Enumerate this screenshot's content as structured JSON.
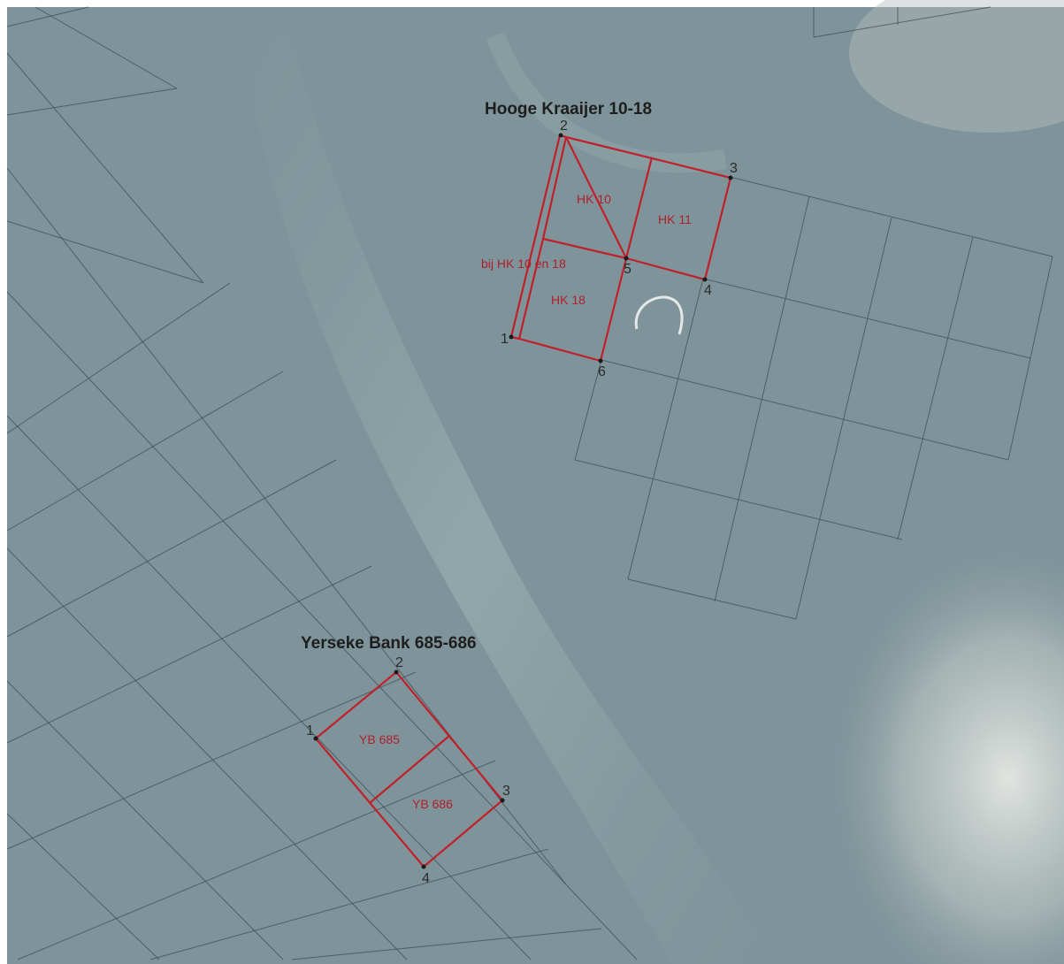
{
  "colors": {
    "background": "#7e949a",
    "plot_outline": "#c0202a",
    "grid": "#3f4d55",
    "title": "#1e1e1e"
  },
  "areas": [
    {
      "title": "Hooge Kraaijer 10-18",
      "plots": [
        "HK 10",
        "HK 11",
        "HK 18"
      ],
      "strip_label": "bij HK 10 en 18",
      "points": [
        "1",
        "2",
        "3",
        "4",
        "5",
        "6"
      ]
    },
    {
      "title": "Yerseke Bank 685-686",
      "plots": [
        "YB 685",
        "YB 686"
      ],
      "points": [
        "1",
        "2",
        "3",
        "4"
      ]
    }
  ]
}
